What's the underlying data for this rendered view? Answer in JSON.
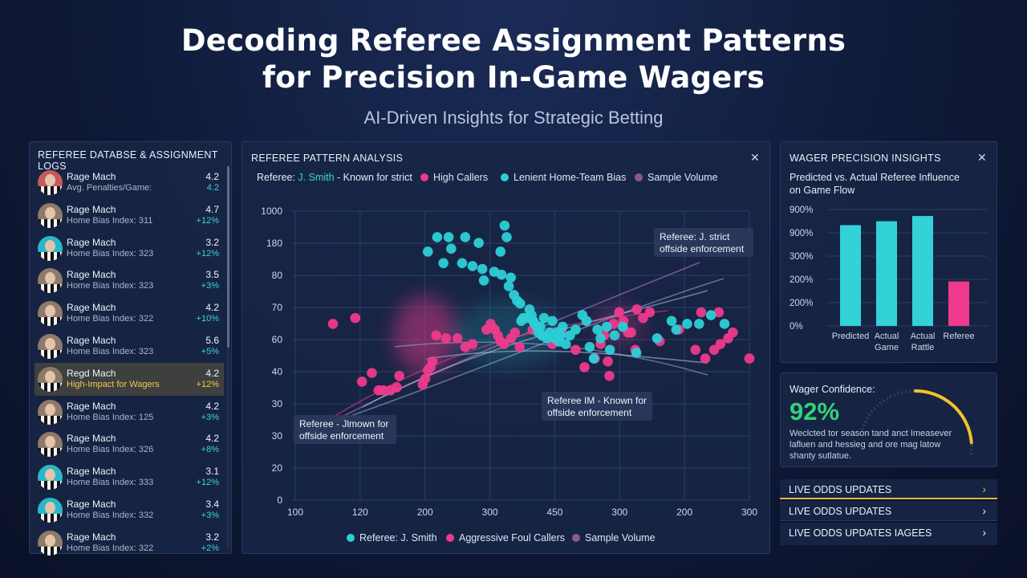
{
  "header": {
    "title_line1": "Decoding Referee Assignment Patterns",
    "title_line2": "for Precision In-Game Wagers",
    "subtitle": "AI-Driven Insights for Strategic Betting"
  },
  "left_panel": {
    "title": "REFEREE DATABSE & ASSIGNMENT LOGS",
    "referees": [
      {
        "name": "Rage Mach",
        "sub": "Avg. Penalties/Game:",
        "score": "4.2",
        "delta": "4.2",
        "avatar": "red",
        "highlight": false
      },
      {
        "name": "Rage Mach",
        "sub": "Home Bias Index: 311",
        "score": "4.7",
        "delta": "+12%",
        "avatar": "neutral",
        "highlight": false
      },
      {
        "name": "Rage Mach",
        "sub": "Home Bias Index: 323",
        "score": "3.2",
        "delta": "+12%",
        "avatar": "teal",
        "highlight": false
      },
      {
        "name": "Rage Mach",
        "sub": "Home Bias Index: 323",
        "score": "3.5",
        "delta": "+3%",
        "avatar": "neutral",
        "highlight": false
      },
      {
        "name": "Rage Mach",
        "sub": "Home Bias Index: 322",
        "score": "4.2",
        "delta": "+10%",
        "avatar": "neutral",
        "highlight": false
      },
      {
        "name": "Rage Mach",
        "sub": "Home Bias Index: 323",
        "score": "5.6",
        "delta": "+5%",
        "avatar": "neutral",
        "highlight": false
      },
      {
        "name": "Regd Mach",
        "sub": "High-Impact for Wagers",
        "score": "4.2",
        "delta": "+12%",
        "avatar": "neutral",
        "highlight": true
      },
      {
        "name": "Rage Mach",
        "sub": "Home Bias Index: 125",
        "score": "4.2",
        "delta": "+3%",
        "avatar": "neutral",
        "highlight": false
      },
      {
        "name": "Rage Mach",
        "sub": "Home Bias Index: 326",
        "score": "4.2",
        "delta": "+8%",
        "avatar": "neutral",
        "highlight": false
      },
      {
        "name": "Rage Mach",
        "sub": "Home Bias Index: 333",
        "score": "3.1",
        "delta": "+12%",
        "avatar": "teal",
        "highlight": false
      },
      {
        "name": "Rage Mach",
        "sub": "Home Bias Index: 332",
        "score": "3.4",
        "delta": "+3%",
        "avatar": "teal",
        "highlight": false
      },
      {
        "name": "Rage Mach",
        "sub": "Home Bias Index: 322",
        "score": "3.2",
        "delta": "+2%",
        "avatar": "neutral",
        "highlight": false
      }
    ]
  },
  "center_panel": {
    "title": "REFEREE PATTERN ANALYSIS",
    "referee_prefix": "Referee: ",
    "referee_name": "J. Smith",
    "referee_suffix": " - Known for strict",
    "legend_top": [
      "High Callers",
      "Lenient Home-Team Bias",
      "Sample Volume"
    ],
    "legend_bottom": [
      "Referee: J. Smith",
      "Aggressive Foul Callers",
      "Sample Volume"
    ],
    "annotations": [
      {
        "line1": "Referee: J. strict",
        "line2": "offside enforcement"
      },
      {
        "line1": "Referee IM - Known for",
        "line2": "offside enforcement"
      },
      {
        "line1": "Referee - Jlmown for",
        "line2": "offside enforcement"
      }
    ]
  },
  "chart_data": [
    {
      "type": "scatter",
      "title": "REFEREE PATTERN ANALYSIS",
      "x_tick_labels": [
        "100",
        "120",
        "200",
        "300",
        "450",
        "300",
        "200",
        "300"
      ],
      "y_tick_labels": [
        "1000",
        "180",
        "80",
        "70",
        "60",
        "40",
        "30",
        "30",
        "20",
        "0"
      ],
      "grid": true,
      "legend_placement": "top and bottom",
      "series": [
        {
          "name": "High Callers",
          "color": "#ee3a8c",
          "points": [
            [
              117,
              61
            ],
            [
              160,
              63
            ],
            [
              173,
              41
            ],
            [
              192,
              44
            ],
            [
              205,
              38
            ],
            [
              214,
              38
            ],
            [
              228,
              38
            ],
            [
              240,
              39
            ],
            [
              245,
              43
            ],
            [
              290,
              40
            ],
            [
              295,
              42
            ],
            [
              300,
              45
            ],
            [
              305,
              46
            ],
            [
              309,
              48
            ],
            [
              316,
              57
            ],
            [
              335,
              56
            ],
            [
              357,
              56
            ],
            [
              372,
              53
            ],
            [
              386,
              54
            ],
            [
              413,
              59
            ],
            [
              421,
              61
            ],
            [
              429,
              59
            ],
            [
              435,
              57
            ],
            [
              440,
              55
            ],
            [
              447,
              54
            ],
            [
              460,
              56
            ],
            [
              468,
              58
            ],
            [
              477,
              53
            ],
            [
              502,
              59
            ],
            [
              521,
              57
            ],
            [
              540,
              54
            ],
            [
              558,
              58
            ],
            [
              585,
              52
            ],
            [
              602,
              46
            ],
            [
              622,
              49
            ],
            [
              633,
              54
            ],
            [
              640,
              57
            ],
            [
              647,
              48
            ],
            [
              650,
              43
            ],
            [
              658,
              61
            ],
            [
              669,
              65
            ],
            [
              677,
              62
            ],
            [
              686,
              58
            ],
            [
              692,
              58
            ],
            [
              700,
              52
            ],
            [
              703,
              66
            ],
            [
              715,
              63
            ],
            [
              728,
              65
            ],
            [
              747,
              55
            ],
            [
              784,
              59
            ],
            [
              816,
              52
            ],
            [
              827,
              65
            ],
            [
              835,
              49
            ],
            [
              852,
              52
            ],
            [
              861,
              65
            ],
            [
              864,
              54
            ],
            [
              879,
              56
            ],
            [
              888,
              58
            ],
            [
              920,
              49
            ]
          ]
        },
        {
          "name": "Lenient Home-Team Bias",
          "color": "#2ccfd6",
          "points": [
            [
              300,
              86
            ],
            [
              318,
              91
            ],
            [
              330,
              82
            ],
            [
              340,
              91
            ],
            [
              345,
              87
            ],
            [
              366,
              82
            ],
            [
              372,
              91
            ],
            [
              386,
              81
            ],
            [
              398,
              89
            ],
            [
              405,
              80
            ],
            [
              408,
              76
            ],
            [
              428,
              79
            ],
            [
              440,
              86
            ],
            [
              442,
              78
            ],
            [
              448,
              95
            ],
            [
              452,
              91
            ],
            [
              456,
              74
            ],
            [
              460,
              77
            ],
            [
              466,
              71
            ],
            [
              472,
              69
            ],
            [
              478,
              68
            ],
            [
              480,
              62
            ],
            [
              484,
              63
            ],
            [
              490,
              63
            ],
            [
              496,
              66
            ],
            [
              500,
              64
            ],
            [
              503,
              62
            ],
            [
              506,
              61
            ],
            [
              510,
              60
            ],
            [
              513,
              58
            ],
            [
              517,
              60
            ],
            [
              520,
              57
            ],
            [
              524,
              63
            ],
            [
              529,
              56
            ],
            [
              535,
              58
            ],
            [
              540,
              62
            ],
            [
              544,
              56
            ],
            [
              548,
              58
            ],
            [
              552,
              55
            ],
            [
              556,
              57
            ],
            [
              560,
              60
            ],
            [
              566,
              54
            ],
            [
              574,
              57
            ],
            [
              585,
              59
            ],
            [
              598,
              64
            ],
            [
              606,
              62
            ],
            [
              612,
              53
            ],
            [
              620,
              49
            ],
            [
              627,
              59
            ],
            [
              633,
              56
            ],
            [
              645,
              60
            ],
            [
              651,
              52
            ],
            [
              660,
              57
            ],
            [
              676,
              60
            ],
            [
              702,
              51
            ],
            [
              742,
              56
            ],
            [
              770,
              62
            ],
            [
              779,
              59
            ],
            [
              800,
              61
            ],
            [
              823,
              61
            ],
            [
              846,
              64
            ],
            [
              872,
              61
            ]
          ]
        },
        {
          "name": "Sample Volume",
          "color": "#8a5a8a",
          "points": []
        }
      ]
    },
    {
      "type": "bar",
      "title": "Predicted vs. Actual Referee Influence on Game Flow",
      "categories": [
        "Predicted",
        "Actual Game",
        "Actual Rattle",
        "Referee"
      ],
      "values": [
        770,
        800,
        840,
        340
      ],
      "colors": [
        "#33d2d8",
        "#33d2d8",
        "#33d2d8",
        "#ee3a8c"
      ],
      "y_tick_labels": [
        "900%",
        "900%",
        "300%",
        "200%",
        "200%",
        "0%"
      ],
      "ylim": [
        0,
        1000
      ]
    },
    {
      "type": "gauge",
      "label": "Wager Confidence:",
      "value": 92,
      "unit": "%"
    }
  ],
  "insights": {
    "title": "WAGER PRECISION INSIGHTS",
    "subtitle": "Predicted vs. Actual Referee Influence on Game Flow"
  },
  "confidence": {
    "label": "Wager Confidence:",
    "value": "92%",
    "text": "Weclcted tor season tand anct Imeasever lafluen and hessieg and ore mag latow shanty sutlatue."
  },
  "odds": [
    {
      "label": "LIVE ODDS UPDATES",
      "active": true
    },
    {
      "label": "LIVE ODDS UPDATES",
      "active": false
    },
    {
      "label": "LIVE ODDS UPDATES IAGEES",
      "active": false
    }
  ],
  "colors": {
    "pink": "#ee3a8c",
    "teal": "#2ccfd6",
    "green": "#33d17a",
    "yellow": "#f5c84a"
  }
}
